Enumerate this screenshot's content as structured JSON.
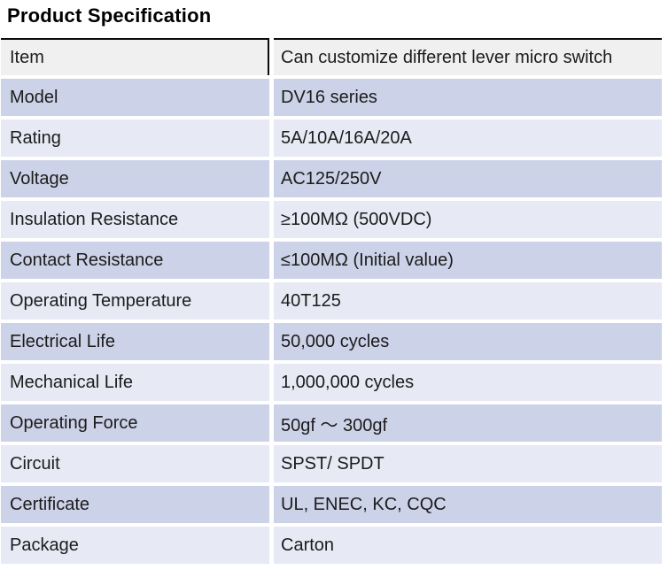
{
  "page": {
    "title": "Product Specification"
  },
  "table": {
    "rows": [
      {
        "label": "Item",
        "value": "Can customize different lever micro switch"
      },
      {
        "label": "Model",
        "value": "DV16 series"
      },
      {
        "label": "Rating",
        "value": "5A/10A/16A/20A"
      },
      {
        "label": "Voltage",
        "value": "AC125/250V"
      },
      {
        "label": "Insulation Resistance",
        "value": "≥100MΩ (500VDC)"
      },
      {
        "label": "Contact Resistance",
        "value": "≤100MΩ (Initial value)"
      },
      {
        "label": "Operating Temperature",
        "value": "40T125"
      },
      {
        "label": "Electrical Life",
        "value": "50,000 cycles"
      },
      {
        "label": "Mechanical Life",
        "value": "1,000,000 cycles"
      },
      {
        "label": "Operating Force",
        "value": "50gf ～ 300gf"
      },
      {
        "label": "Circuit",
        "value": "SPST/ SPDT"
      },
      {
        "label": "Certificate",
        "value": "UL, ENEC, KC, CQC"
      },
      {
        "label": "Package",
        "value": "Carton"
      }
    ],
    "colors": {
      "header_row_bg": "#f0f0f1",
      "row_lavender": "#ccd2e7",
      "row_light": "#e7e9f4",
      "border_black": "#0c0c0c",
      "text": "#1c1c1c",
      "row_gap": "#ffffff"
    }
  }
}
